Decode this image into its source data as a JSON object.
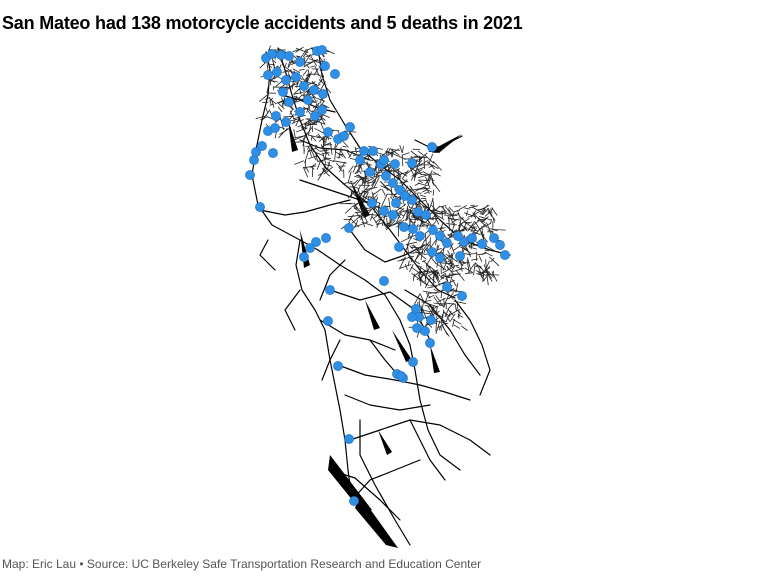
{
  "title": "San Mateo had 138 motorcycle accidents and 5 deaths in 2021",
  "footer": {
    "credit": "Map: Eric Lau",
    "separator": " • ",
    "source": "Source: UC Berkeley Safe Transportation Research and Education Center"
  },
  "map": {
    "region": "San Mateo County",
    "layers": [
      "road-network",
      "accident-points"
    ],
    "point_color": "#2f8fe5",
    "point_stroke": "#1f72c4",
    "road_color": "#000000",
    "background": "#ffffff"
  }
}
